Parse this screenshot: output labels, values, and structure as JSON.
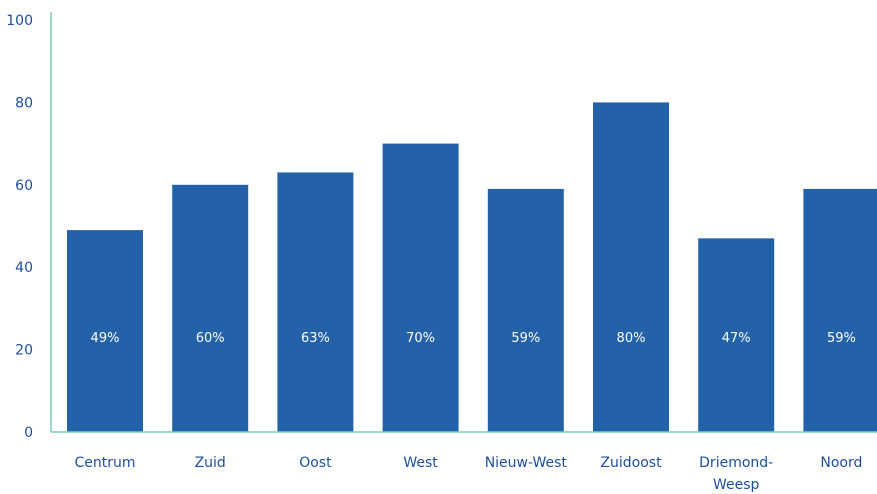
{
  "chart_data": {
    "type": "bar",
    "categories": [
      "Centrum",
      "Zuid",
      "Oost",
      "West",
      "Nieuw-West",
      "Zuidoost",
      "Driemond-Weesp",
      "Noord"
    ],
    "category_lines": [
      [
        "Centrum"
      ],
      [
        "Zuid"
      ],
      [
        "Oost"
      ],
      [
        "West"
      ],
      [
        "Nieuw-West"
      ],
      [
        "Zuidoost"
      ],
      [
        "Driemond-",
        "Weesp"
      ],
      [
        "Noord"
      ]
    ],
    "values": [
      49,
      60,
      63,
      70,
      59,
      80,
      47,
      59
    ],
    "data_labels": [
      "49%",
      "60%",
      "63%",
      "70%",
      "59%",
      "80%",
      "47%",
      "59%"
    ],
    "ylim": [
      0,
      100
    ],
    "yticks": [
      0,
      20,
      40,
      60,
      80,
      100
    ],
    "title": "",
    "xlabel": "",
    "ylabel": "",
    "grid": false,
    "colors": {
      "bar": "#2362a8",
      "axis": "#7ccfb8",
      "tick_text": "#1f4e9a",
      "data_label_text": "#ffffff"
    }
  }
}
